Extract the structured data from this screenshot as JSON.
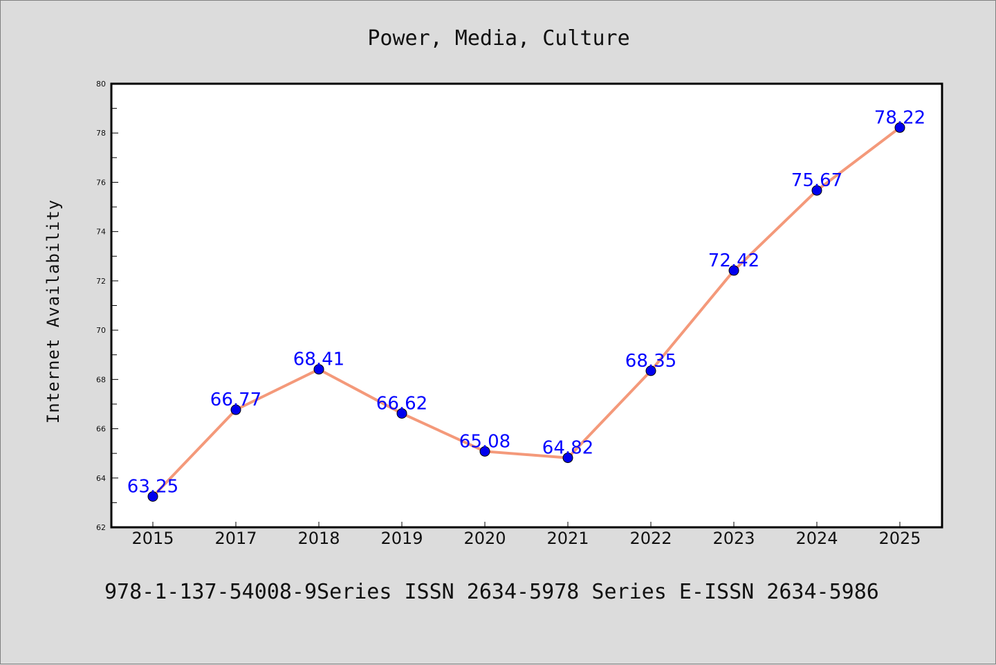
{
  "chart_data": {
    "type": "line",
    "title": "Power, Media, Culture",
    "xlabel": "",
    "ylabel": "Internet Availability",
    "categories": [
      "2015",
      "2017",
      "2018",
      "2019",
      "2020",
      "2021",
      "2022",
      "2023",
      "2024",
      "2025"
    ],
    "series": [
      {
        "values": [
          63.25,
          66.77,
          68.41,
          66.62,
          65.08,
          64.82,
          68.35,
          72.42,
          75.67,
          78.22
        ]
      }
    ],
    "data_labels": [
      "63.25",
      "66.77",
      "68.41",
      "66.62",
      "65.08",
      "64.82",
      "68.35",
      "72.42",
      "75.67",
      "78.22"
    ],
    "ylim": [
      62,
      80
    ],
    "yticks": [
      "62",
      "64",
      "66",
      "68",
      "70",
      "72",
      "74",
      "76",
      "78",
      "80"
    ],
    "grid": false,
    "legend": "none",
    "colors": {
      "line": "#f4997a",
      "marker": "#0000ee",
      "label": "#0000ff",
      "background": "#dcdcdc",
      "plot_area": "#ffffff"
    }
  },
  "footer": "978-1-137-54008-9Series ISSN 2634-5978 Series E-ISSN 2634-5986"
}
